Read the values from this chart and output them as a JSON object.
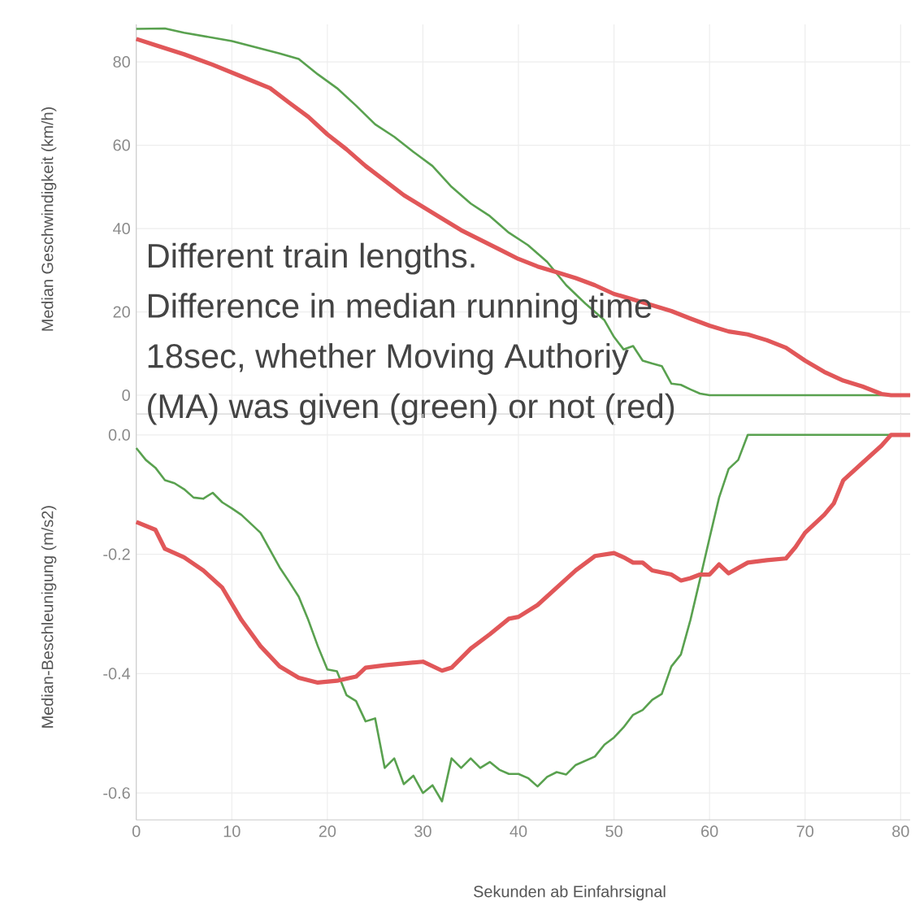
{
  "chart_data": [
    {
      "type": "line",
      "ylabel": "Median Geschwindigkeit (km/h)",
      "xlim": [
        0,
        81
      ],
      "xticks": [
        0,
        10,
        20,
        30,
        40,
        50,
        60,
        70,
        80
      ],
      "ylim": [
        -4.5,
        89
      ],
      "yticks": [
        0,
        20,
        40,
        60,
        80
      ],
      "grid": true,
      "tick_labels": "y",
      "annotations": [
        "Different train lengths.",
        "Difference in median running time",
        "18sec, whether Moving Authoriy",
        "(MA) was given (green) or not (red)"
      ],
      "series": [
        {
          "color": "#59a14f",
          "x": [
            0,
            3,
            5,
            10,
            15,
            17,
            19,
            21,
            23,
            25,
            27,
            29,
            31,
            33,
            35,
            37,
            39,
            41,
            43,
            45,
            47,
            49,
            50,
            51,
            52,
            53,
            54,
            55,
            56,
            57,
            58,
            59,
            60,
            70,
            81
          ],
          "values": [
            87.9,
            88,
            87,
            85,
            82,
            80.7,
            77,
            73.7,
            69.5,
            65,
            62,
            58.4,
            55,
            50,
            46,
            43,
            39,
            36,
            32,
            26.4,
            22,
            18,
            14,
            11,
            11.8,
            8.3,
            7.6,
            7,
            2.8,
            2.5,
            1.4,
            0.4,
            0,
            0,
            0
          ]
        },
        {
          "color": "#e15759",
          "x": [
            0,
            2,
            5,
            8,
            11,
            14,
            16,
            18,
            20,
            22,
            24,
            26,
            28,
            30,
            32,
            34,
            36,
            38,
            40,
            42,
            44,
            46,
            48,
            50,
            52,
            54,
            56,
            58,
            60,
            62,
            64,
            66,
            68,
            70,
            72,
            74,
            76,
            78,
            79,
            81
          ],
          "values": [
            85.5,
            84,
            81.8,
            79.3,
            76.5,
            73.7,
            70.2,
            66.8,
            62.6,
            59,
            55,
            51.5,
            48,
            45.2,
            42.4,
            39.6,
            37.3,
            35,
            32.7,
            30.9,
            29.5,
            28.1,
            26.4,
            24.3,
            23,
            21.6,
            20.2,
            18.4,
            16.7,
            15.3,
            14.6,
            13.2,
            11.4,
            8.3,
            5.6,
            3.5,
            2.1,
            0.3,
            0,
            0
          ]
        }
      ]
    },
    {
      "type": "line",
      "xlabel": "Sekunden ab Einfahrsignal",
      "ylabel": "Median-Beschleunigung (m/s2)",
      "xlim": [
        0,
        81
      ],
      "xticks": [
        0,
        10,
        20,
        30,
        40,
        50,
        60,
        70,
        80
      ],
      "ylim": [
        -0.645,
        0.035
      ],
      "yticks": [
        {
          "value": 0,
          "label": "0.0"
        },
        -0.2,
        -0.4,
        -0.6
      ],
      "grid": true,
      "series": [
        {
          "color": "#59a14f",
          "x": [
            0,
            1,
            2,
            3,
            4,
            5,
            6,
            7,
            8,
            9,
            10,
            11,
            12,
            13,
            14,
            15,
            16,
            17,
            18,
            19,
            20,
            21,
            22,
            23,
            24,
            25,
            26,
            27,
            28,
            29,
            30,
            31,
            32,
            33,
            34,
            35,
            36,
            37,
            38,
            39,
            40,
            41,
            42,
            43,
            44,
            45,
            46,
            47,
            48,
            49,
            50,
            51,
            52,
            53,
            54,
            55,
            56,
            57,
            58,
            59,
            60,
            61,
            62,
            63,
            64,
            70,
            81
          ],
          "values": [
            -0.022,
            -0.042,
            -0.055,
            -0.076,
            -0.081,
            -0.091,
            -0.105,
            -0.107,
            -0.097,
            -0.113,
            -0.123,
            -0.134,
            -0.149,
            -0.164,
            -0.193,
            -0.222,
            -0.246,
            -0.271,
            -0.31,
            -0.354,
            -0.393,
            -0.396,
            -0.436,
            -0.446,
            -0.48,
            -0.475,
            -0.558,
            -0.542,
            -0.585,
            -0.571,
            -0.6,
            -0.587,
            -0.614,
            -0.542,
            -0.558,
            -0.542,
            -0.558,
            -0.548,
            -0.561,
            -0.568,
            -0.568,
            -0.575,
            -0.589,
            -0.573,
            -0.565,
            -0.569,
            -0.553,
            -0.546,
            -0.539,
            -0.519,
            -0.507,
            -0.49,
            -0.469,
            -0.461,
            -0.444,
            -0.434,
            -0.388,
            -0.368,
            -0.31,
            -0.242,
            -0.173,
            -0.105,
            -0.057,
            -0.042,
            0,
            0,
            0
          ]
        },
        {
          "color": "#e15759",
          "x": [
            0,
            2,
            3,
            5,
            7,
            9,
            11,
            13,
            15,
            17,
            19,
            21,
            23,
            24,
            26,
            28,
            30,
            32,
            33,
            35,
            37,
            39,
            40,
            42,
            44,
            46,
            48,
            50,
            51,
            52,
            53,
            54,
            56,
            57,
            58,
            59,
            60,
            61,
            62,
            64,
            66,
            68,
            69,
            70,
            72,
            73,
            74,
            76,
            78,
            79,
            81
          ],
          "values": [
            -0.146,
            -0.159,
            -0.191,
            -0.205,
            -0.227,
            -0.256,
            -0.31,
            -0.354,
            -0.388,
            -0.407,
            -0.415,
            -0.412,
            -0.405,
            -0.39,
            -0.386,
            -0.383,
            -0.38,
            -0.395,
            -0.39,
            -0.358,
            -0.334,
            -0.308,
            -0.305,
            -0.285,
            -0.256,
            -0.227,
            -0.203,
            -0.198,
            -0.205,
            -0.214,
            -0.214,
            -0.227,
            -0.234,
            -0.244,
            -0.24,
            -0.234,
            -0.234,
            -0.217,
            -0.232,
            -0.214,
            -0.21,
            -0.207,
            -0.188,
            -0.164,
            -0.134,
            -0.115,
            -0.076,
            -0.047,
            -0.018,
            0,
            0
          ]
        }
      ]
    }
  ]
}
